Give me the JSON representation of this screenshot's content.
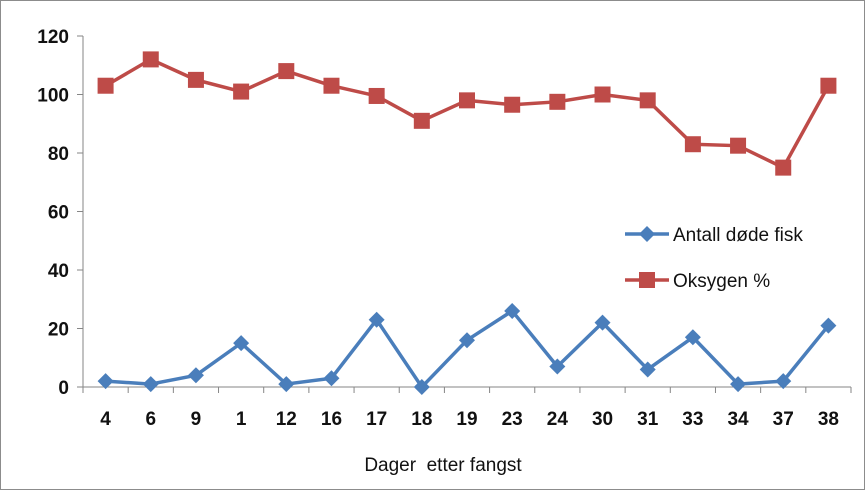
{
  "chart_data": {
    "type": "line",
    "xlabel": "Dager  etter fangst",
    "ylabel": "",
    "ylim": [
      0,
      120
    ],
    "yticks": [
      0,
      20,
      40,
      60,
      80,
      100,
      120
    ],
    "categories": [
      "4",
      "6",
      "9",
      "1",
      "12",
      "16",
      "17",
      "18",
      "19",
      "23",
      "24",
      "30",
      "31",
      "33",
      "34",
      "37",
      "38"
    ],
    "grid": false,
    "legend_position": "right",
    "series": [
      {
        "name": "Antall døde fisk",
        "color": "#4a7ebb",
        "marker": "diamond",
        "values": [
          2,
          1,
          4,
          15,
          1,
          3,
          23,
          0,
          16,
          26,
          7,
          22,
          6,
          17,
          1,
          2,
          21
        ]
      },
      {
        "name": "Oksygen %",
        "color": "#be4b48",
        "marker": "square",
        "values": [
          103,
          112,
          105,
          101,
          108,
          103,
          99.5,
          91,
          98,
          96.5,
          97.5,
          100,
          98,
          83,
          82.5,
          75,
          103
        ]
      }
    ]
  }
}
